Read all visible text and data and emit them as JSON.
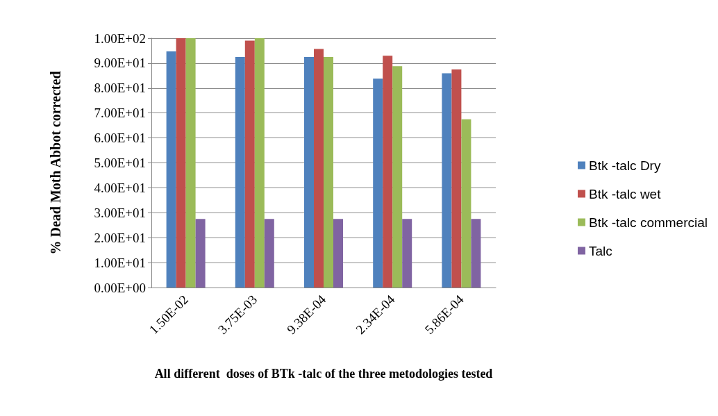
{
  "chart_data": {
    "type": "bar",
    "xlabel": "All different  doses of BTk -talc of the three metodologies tested",
    "ylabel": "% Dead Moth Abbot corrected",
    "categories": [
      "1.50E-02",
      "3.75E-03",
      "9.38E-04",
      "2.34E-04",
      "5.86E-04"
    ],
    "series": [
      {
        "name": "Btk -talc Dry",
        "color": "#4f81bd",
        "values": [
          94.7,
          92.5,
          92.5,
          83.8,
          85.9
        ]
      },
      {
        "name": "Btk -talc wet",
        "color": "#c0504d",
        "values": [
          100,
          99,
          95.7,
          93,
          87.5
        ]
      },
      {
        "name": "Btk -talc commercial",
        "color": "#9bbb59",
        "values": [
          100,
          100,
          92.5,
          88.8,
          67.5
        ]
      },
      {
        "name": "Talc",
        "color": "#8064a2",
        "values": [
          27.5,
          27.5,
          27.5,
          27.5,
          27.5
        ]
      }
    ],
    "ylim": [
      0,
      100
    ],
    "yticks": [
      {
        "value": 0,
        "label": "0.00E+00"
      },
      {
        "value": 10,
        "label": "1.00E+01"
      },
      {
        "value": 20,
        "label": "2.00E+01"
      },
      {
        "value": 30,
        "label": "3.00E+01"
      },
      {
        "value": 40,
        "label": "4.00E+01"
      },
      {
        "value": 50,
        "label": "5.00E+01"
      },
      {
        "value": 60,
        "label": "6.00E+01"
      },
      {
        "value": 70,
        "label": "7.00E+01"
      },
      {
        "value": 80,
        "label": "8.00E+01"
      },
      {
        "value": 90,
        "label": "9.00E+01"
      },
      {
        "value": 100,
        "label": "1.00E+02"
      }
    ],
    "grid": true,
    "legend": "right"
  }
}
